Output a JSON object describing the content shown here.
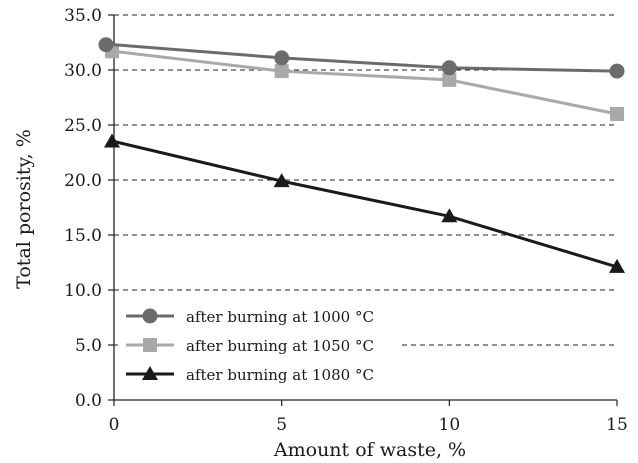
{
  "chart_data": {
    "type": "line",
    "title": "",
    "xlabel": "Amount of waste, %",
    "ylabel": "Total porosity, %",
    "x": [
      0,
      5,
      10,
      15
    ],
    "x_ticks": [
      "0",
      "5",
      "10",
      "15"
    ],
    "xlim": [
      0,
      15
    ],
    "ylim": [
      0,
      35
    ],
    "y_ticks": [
      "0.0",
      "5.0",
      "10.0",
      "15.0",
      "20.0",
      "25.0",
      "30.0",
      "35.0"
    ],
    "grid": "horizontal dashed",
    "legend_position": "bottom-left",
    "series": [
      {
        "name": "after burning at 1000 °C",
        "marker": "circle",
        "color": "#6b6b6b",
        "values": [
          32.3,
          31.1,
          30.2,
          29.9
        ]
      },
      {
        "name": "after burning at 1050 °C",
        "marker": "square",
        "color": "#a9a9a9",
        "values": [
          31.7,
          29.9,
          29.1,
          26.0
        ]
      },
      {
        "name": "after burning at 1080 °C",
        "marker": "triangle",
        "color": "#1a1a1a",
        "values": [
          23.5,
          19.9,
          16.7,
          12.1
        ]
      }
    ]
  }
}
